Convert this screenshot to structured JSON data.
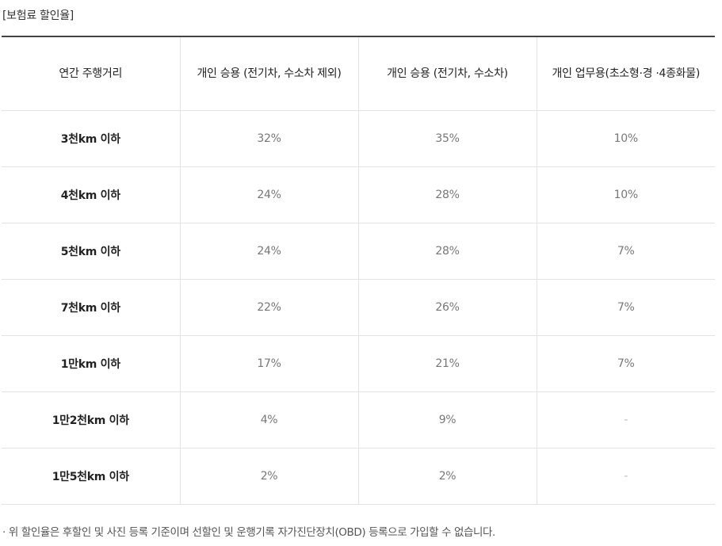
{
  "caption": "[보험료 할인율]",
  "table": {
    "headers": [
      "연간 주행거리",
      "개인 승용 (전기차, 수소차 제외)",
      "개인 승용 (전기차, 수소차)",
      "개인 업무용(초소형·경 ·4종화물)"
    ],
    "rows": [
      {
        "label": "3천km 이하",
        "v1": "32%",
        "v2": "35%",
        "v3": "10%"
      },
      {
        "label": "4천km 이하",
        "v1": "24%",
        "v2": "28%",
        "v3": "10%"
      },
      {
        "label": "5천km 이하",
        "v1": "24%",
        "v2": "28%",
        "v3": "7%"
      },
      {
        "label": "7천km 이하",
        "v1": "22%",
        "v2": "26%",
        "v3": "7%"
      },
      {
        "label": "1만km 이하",
        "v1": "17%",
        "v2": "21%",
        "v3": "7%"
      },
      {
        "label": "1만2천km 이하",
        "v1": "4%",
        "v2": "9%",
        "v3": "-"
      },
      {
        "label": "1만5천km 이하",
        "v1": "2%",
        "v2": "2%",
        "v3": "-"
      }
    ]
  },
  "note": {
    "bullet": "·",
    "text": "위 할인율은 후할인 및 사진 등록 기준이며 선할인 및 운행기록 자가진단장치(OBD) 등록으로 가입할 수 없습니다."
  }
}
